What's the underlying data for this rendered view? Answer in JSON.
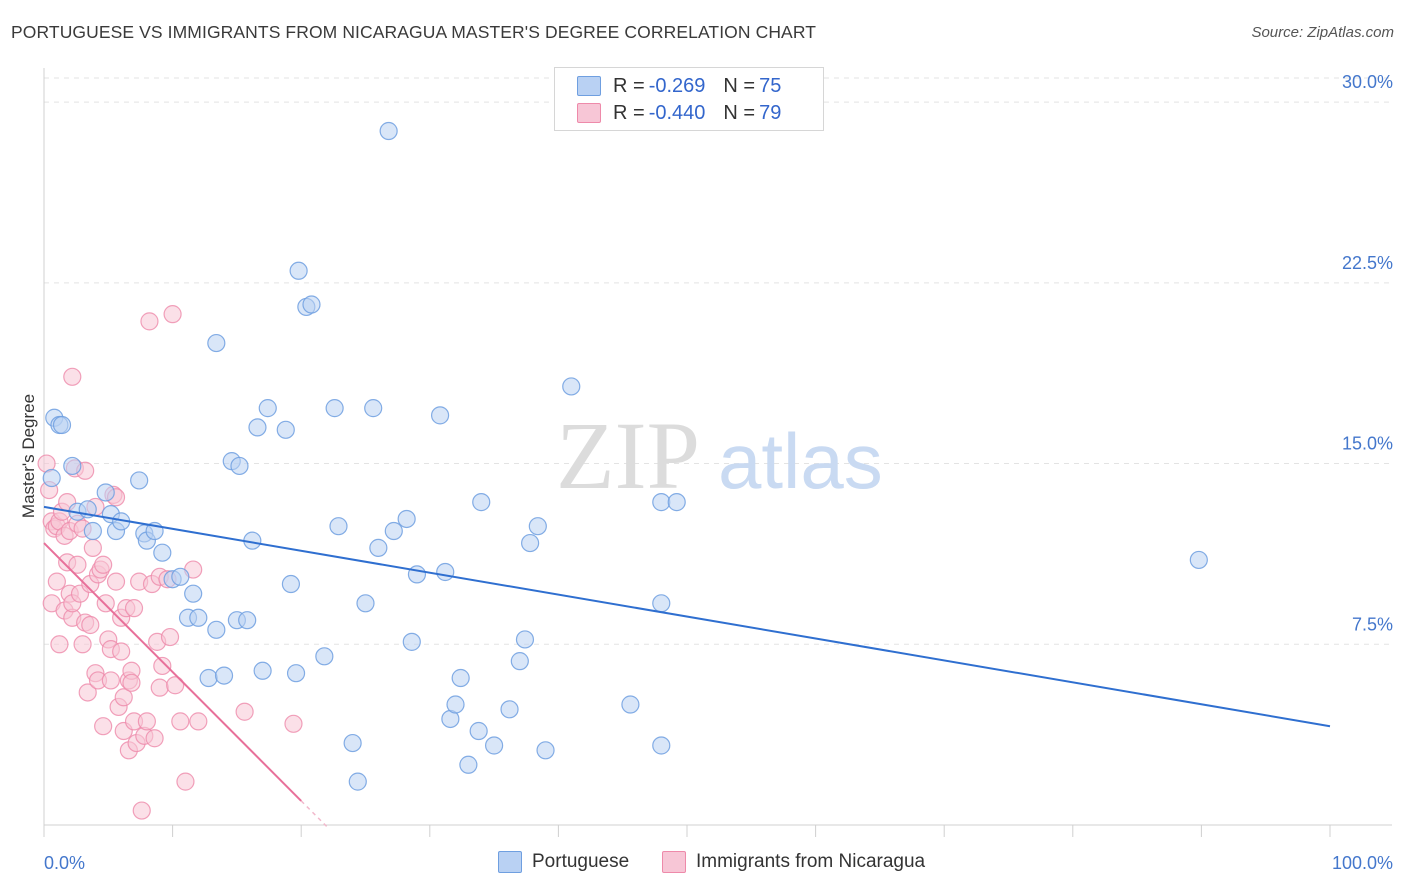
{
  "header": {
    "title": "PORTUGUESE VS IMMIGRANTS FROM NICARAGUA MASTER'S DEGREE CORRELATION CHART",
    "source": "Source: ZipAtlas.com"
  },
  "legend": {
    "rows": [
      {
        "r_label": "R =",
        "r_value": "-0.269",
        "n_label": "N =",
        "n_value": "75"
      },
      {
        "r_label": "R =",
        "r_value": "-0.440",
        "n_label": "N =",
        "n_value": "79"
      }
    ]
  },
  "watermark": {
    "zip": "ZIP",
    "atlas": "atlas"
  },
  "colors": {
    "portuguese": "#6f9fe0",
    "portuguese_fill": "#b9d1f3",
    "nicaragua": "#ee8aaa",
    "nicaragua_fill": "#f7c6d6",
    "blue_line": "#2f6fd0",
    "pink_line": "#e8709a",
    "axis_text": "#4477cc"
  },
  "chart_data": {
    "type": "scatter",
    "title": "PORTUGUESE VS IMMIGRANTS FROM NICARAGUA MASTER'S DEGREE CORRELATION CHART",
    "xlabel": "",
    "ylabel": "Master's Degree",
    "xlim": [
      0,
      100
    ],
    "ylim": [
      0,
      31
    ],
    "x_tick_labels": [
      {
        "value": 0,
        "label": "0.0%"
      },
      {
        "value": 100,
        "label": "100.0%"
      }
    ],
    "y_tick_labels": [
      {
        "value": 7.5,
        "label": "7.5%"
      },
      {
        "value": 15.0,
        "label": "15.0%"
      },
      {
        "value": 22.5,
        "label": "22.5%"
      },
      {
        "value": 30.0,
        "label": "30.0%"
      }
    ],
    "grid": true,
    "legend_position": "top-center",
    "series": [
      {
        "name": "Portuguese",
        "R": -0.269,
        "N": 75,
        "trend": {
          "x0": 0,
          "y0": 13.2,
          "x1": 100,
          "y1": 4.1
        },
        "points": [
          [
            0.6,
            14.4
          ],
          [
            0.8,
            16.9
          ],
          [
            1.2,
            16.6
          ],
          [
            1.4,
            16.6
          ],
          [
            2.2,
            14.9
          ],
          [
            2.6,
            13.0
          ],
          [
            3.4,
            13.1
          ],
          [
            4.8,
            13.8
          ],
          [
            5.2,
            12.9
          ],
          [
            5.6,
            12.2
          ],
          [
            6.0,
            12.6
          ],
          [
            3.8,
            12.2
          ],
          [
            7.4,
            14.3
          ],
          [
            7.8,
            12.1
          ],
          [
            8.0,
            11.8
          ],
          [
            8.6,
            12.2
          ],
          [
            9.2,
            11.3
          ],
          [
            10.0,
            10.2
          ],
          [
            10.6,
            10.3
          ],
          [
            11.2,
            8.6
          ],
          [
            12.0,
            8.6
          ],
          [
            11.6,
            9.6
          ],
          [
            12.8,
            6.1
          ],
          [
            13.4,
            8.1
          ],
          [
            13.4,
            20.0
          ],
          [
            14.0,
            6.2
          ],
          [
            14.6,
            15.1
          ],
          [
            15.2,
            14.9
          ],
          [
            15.0,
            8.5
          ],
          [
            15.8,
            8.5
          ],
          [
            16.2,
            11.8
          ],
          [
            16.6,
            16.5
          ],
          [
            17.0,
            6.4
          ],
          [
            17.4,
            17.3
          ],
          [
            18.8,
            16.4
          ],
          [
            19.2,
            10.0
          ],
          [
            19.6,
            6.3
          ],
          [
            19.8,
            23.0
          ],
          [
            20.4,
            21.5
          ],
          [
            20.8,
            21.6
          ],
          [
            21.8,
            7.0
          ],
          [
            22.6,
            17.3
          ],
          [
            22.9,
            12.4
          ],
          [
            24.0,
            3.4
          ],
          [
            24.4,
            1.8
          ],
          [
            25.0,
            9.2
          ],
          [
            25.6,
            17.3
          ],
          [
            26.0,
            11.5
          ],
          [
            26.8,
            28.8
          ],
          [
            27.2,
            12.2
          ],
          [
            28.2,
            12.7
          ],
          [
            28.6,
            7.6
          ],
          [
            29.0,
            10.4
          ],
          [
            30.8,
            17.0
          ],
          [
            31.2,
            10.5
          ],
          [
            31.6,
            4.4
          ],
          [
            32.0,
            5.0
          ],
          [
            32.4,
            6.1
          ],
          [
            33.0,
            2.5
          ],
          [
            33.8,
            3.9
          ],
          [
            34.0,
            13.4
          ],
          [
            35.0,
            3.3
          ],
          [
            36.2,
            4.8
          ],
          [
            37.0,
            6.8
          ],
          [
            37.4,
            7.7
          ],
          [
            37.8,
            11.7
          ],
          [
            38.4,
            12.4
          ],
          [
            39.0,
            3.1
          ],
          [
            41.0,
            18.2
          ],
          [
            45.6,
            5.0
          ],
          [
            48.0,
            13.4
          ],
          [
            48.0,
            9.2
          ],
          [
            48.0,
            3.3
          ],
          [
            49.2,
            13.4
          ],
          [
            89.8,
            11.0
          ]
        ]
      },
      {
        "name": "Immigrants from Nicaragua",
        "R": -0.44,
        "N": 79,
        "trend": {
          "x0": 0,
          "y0": 11.7,
          "x1": 20,
          "y1": 1.0
        },
        "points": [
          [
            0.2,
            15.0
          ],
          [
            0.4,
            13.9
          ],
          [
            0.6,
            12.6
          ],
          [
            0.6,
            9.2
          ],
          [
            0.8,
            12.3
          ],
          [
            1.0,
            12.4
          ],
          [
            1.0,
            10.1
          ],
          [
            1.2,
            12.6
          ],
          [
            1.2,
            7.5
          ],
          [
            1.4,
            13.0
          ],
          [
            1.6,
            12.0
          ],
          [
            1.6,
            8.9
          ],
          [
            1.8,
            13.4
          ],
          [
            1.8,
            10.9
          ],
          [
            2.0,
            12.2
          ],
          [
            2.0,
            9.6
          ],
          [
            2.2,
            8.6
          ],
          [
            2.2,
            9.2
          ],
          [
            2.4,
            14.8
          ],
          [
            2.6,
            12.5
          ],
          [
            2.6,
            10.8
          ],
          [
            2.8,
            9.6
          ],
          [
            3.0,
            7.5
          ],
          [
            3.0,
            12.3
          ],
          [
            3.2,
            14.7
          ],
          [
            3.2,
            8.4
          ],
          [
            3.4,
            5.5
          ],
          [
            3.6,
            10.0
          ],
          [
            3.6,
            8.3
          ],
          [
            3.8,
            11.5
          ],
          [
            4.0,
            13.2
          ],
          [
            4.0,
            6.3
          ],
          [
            4.2,
            10.4
          ],
          [
            4.2,
            6.0
          ],
          [
            4.4,
            10.6
          ],
          [
            4.6,
            10.8
          ],
          [
            4.6,
            4.1
          ],
          [
            4.8,
            9.2
          ],
          [
            5.0,
            7.7
          ],
          [
            5.2,
            7.3
          ],
          [
            5.2,
            6.0
          ],
          [
            5.4,
            13.7
          ],
          [
            5.6,
            13.6
          ],
          [
            5.6,
            10.1
          ],
          [
            5.8,
            4.9
          ],
          [
            6.0,
            8.6
          ],
          [
            6.0,
            7.2
          ],
          [
            6.2,
            5.3
          ],
          [
            6.2,
            3.9
          ],
          [
            6.4,
            9.0
          ],
          [
            6.6,
            3.1
          ],
          [
            6.6,
            6.0
          ],
          [
            6.8,
            6.4
          ],
          [
            6.8,
            5.9
          ],
          [
            7.0,
            9.0
          ],
          [
            7.0,
            4.3
          ],
          [
            7.2,
            3.4
          ],
          [
            7.4,
            10.1
          ],
          [
            7.6,
            0.6
          ],
          [
            7.8,
            3.7
          ],
          [
            8.0,
            4.3
          ],
          [
            8.2,
            20.9
          ],
          [
            8.4,
            10.0
          ],
          [
            8.6,
            3.6
          ],
          [
            8.8,
            7.6
          ],
          [
            9.0,
            10.3
          ],
          [
            9.0,
            5.7
          ],
          [
            9.2,
            6.6
          ],
          [
            9.6,
            10.2
          ],
          [
            9.8,
            7.8
          ],
          [
            10.0,
            21.2
          ],
          [
            10.2,
            5.8
          ],
          [
            10.6,
            4.3
          ],
          [
            11.0,
            1.8
          ],
          [
            11.6,
            10.6
          ],
          [
            12.0,
            4.3
          ],
          [
            15.6,
            4.7
          ],
          [
            19.4,
            4.2
          ],
          [
            2.2,
            18.6
          ]
        ]
      }
    ]
  },
  "bottom_legend": {
    "items": [
      {
        "label": "Portuguese"
      },
      {
        "label": "Immigrants from Nicaragua"
      }
    ]
  }
}
